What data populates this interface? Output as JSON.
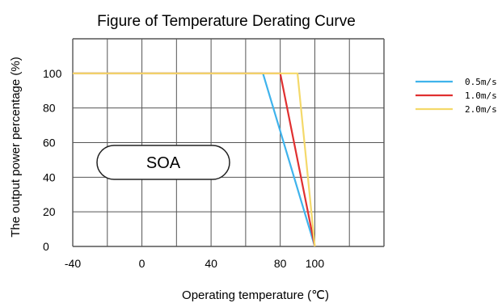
{
  "chart_data": {
    "type": "line",
    "title": "Figure of Temperature Derating Curve",
    "xlabel": "Operating temperature (℃)",
    "ylabel": "The output power percentage (%)",
    "x_ticks": [
      "-40",
      "0",
      "40",
      "80",
      "100"
    ],
    "y_ticks": [
      "0",
      "20",
      "40",
      "60",
      "80",
      "100"
    ],
    "xlim": [
      -40,
      140
    ],
    "ylim": [
      0,
      120
    ],
    "grid": true,
    "legend_position": "right",
    "annotation": "SOA",
    "series": [
      {
        "name": "0.5m/s",
        "color": "#3fb3ec",
        "x": [
          -40,
          70,
          100
        ],
        "y": [
          100,
          100,
          0
        ]
      },
      {
        "name": "1.0m/s",
        "color": "#e03030",
        "x": [
          -40,
          80,
          100
        ],
        "y": [
          100,
          100,
          0
        ]
      },
      {
        "name": "2.0m/s",
        "color": "#f4d96a",
        "x": [
          -40,
          90,
          100
        ],
        "y": [
          100,
          100,
          0
        ]
      }
    ]
  }
}
